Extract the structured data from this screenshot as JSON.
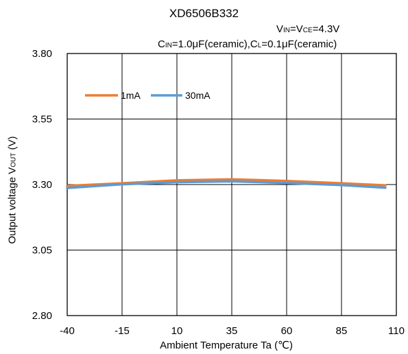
{
  "chart_data": {
    "type": "line",
    "title": "XD6506B332",
    "conditions": {
      "line1": {
        "v1": "V",
        "v1_sub": "IN",
        "mid": "=V",
        "v2_sub": "CE",
        "tail": "=4.3V"
      },
      "line2": {
        "c1": "C",
        "c1_sub": "IN",
        "mid": "=1.0μF(ceramic),C",
        "c2_sub": "L",
        "tail": "=0.1μF(ceramic)"
      }
    },
    "ylabel": {
      "main": "Output voltage  V",
      "sub": "OUT",
      "tail": " (V)"
    },
    "xlabel": "Ambient Temperature   Ta (℃)",
    "xlim": [
      -40,
      110
    ],
    "ylim": [
      2.8,
      3.8
    ],
    "x_ticks": [
      "-40",
      "-15",
      "10",
      "35",
      "60",
      "85",
      "110"
    ],
    "y_ticks": [
      "2.80",
      "3.05",
      "3.30",
      "3.55",
      "3.80"
    ],
    "grid": true,
    "legend_position": "top-left",
    "series": [
      {
        "name": "1mA",
        "color": "#ed7d31",
        "x": [
          -40,
          -15,
          10,
          35,
          60,
          85,
          105
        ],
        "y": [
          3.295,
          3.305,
          3.316,
          3.32,
          3.314,
          3.305,
          3.297
        ]
      },
      {
        "name": "30mA",
        "color": "#5b9bd5",
        "x": [
          -40,
          -15,
          10,
          35,
          60,
          85,
          105
        ],
        "y": [
          3.287,
          3.301,
          3.309,
          3.312,
          3.306,
          3.298,
          3.288
        ]
      }
    ]
  }
}
